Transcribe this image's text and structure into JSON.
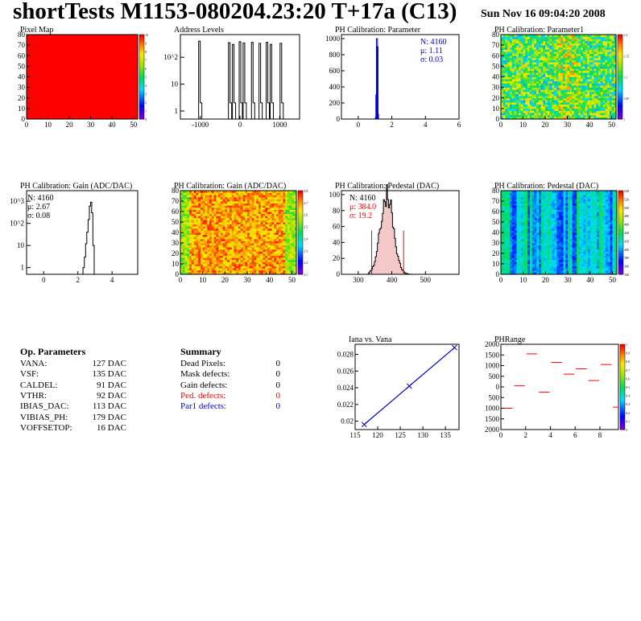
{
  "header": {
    "title": "shortTests M1153-080204.23:20 T+17a (C13)",
    "date": "Sun Nov 16 09:04:20 2008"
  },
  "colors": {
    "red": "#ff0000",
    "blue": "#0000cc",
    "black": "#000000"
  },
  "chart_data": [
    {
      "id": "pixel-map",
      "type": "heatmap",
      "title": "Pixel Map",
      "xlim": [
        0,
        52
      ],
      "ylim": [
        0,
        80
      ],
      "xticks": [
        "0",
        "10",
        "20",
        "30",
        "40",
        "50"
      ],
      "yticks": [
        "0",
        "10",
        "20",
        "30",
        "40",
        "50",
        "60",
        "70",
        "80"
      ],
      "zticks": [
        "0",
        "1",
        "2",
        "3",
        "4",
        "5",
        "6",
        "7",
        "8",
        "9",
        "10"
      ],
      "zrange": [
        0,
        10
      ],
      "fill_value": 10
    },
    {
      "id": "address-levels",
      "type": "bar",
      "title": "Address Levels",
      "xlim": [
        -1500,
        1500
      ],
      "log_y": true,
      "xticks": [
        "-1000",
        "0",
        "1000"
      ],
      "yticks": [
        "1",
        "10",
        "10^2"
      ],
      "peaks": [
        {
          "x": -1000,
          "y": 400
        },
        {
          "x": -250,
          "y": 350
        },
        {
          "x": -150,
          "y": 300
        },
        {
          "x": 20,
          "y": 380
        },
        {
          "x": 120,
          "y": 340
        },
        {
          "x": 330,
          "y": 360
        },
        {
          "x": 520,
          "y": 330
        },
        {
          "x": 700,
          "y": 360
        },
        {
          "x": 800,
          "y": 300
        },
        {
          "x": 1050,
          "y": 330
        }
      ]
    },
    {
      "id": "ph-param",
      "type": "bar",
      "title": "PH Calibration: Parameter",
      "xlim": [
        -1,
        6
      ],
      "ylim": [
        0,
        1050
      ],
      "xticks": [
        "0",
        "2",
        "4",
        "6"
      ],
      "yticks": [
        "0",
        "200",
        "400",
        "600",
        "800",
        "1000"
      ],
      "stats": [
        "N: 4160",
        "μ: 1.11",
        "σ: 0.03"
      ],
      "bins": [
        {
          "x": 1.05,
          "y": 20
        },
        {
          "x": 1.08,
          "y": 300
        },
        {
          "x": 1.11,
          "y": 1000
        },
        {
          "x": 1.14,
          "y": 900
        },
        {
          "x": 1.17,
          "y": 60
        }
      ]
    },
    {
      "id": "ph-param1",
      "type": "heatmap",
      "title": "PH Calibration: Parameter1",
      "xlim": [
        0,
        52
      ],
      "ylim": [
        0,
        80
      ],
      "xticks": [
        "0",
        "10",
        "20",
        "30",
        "40",
        "50"
      ],
      "yticks": [
        "0",
        "10",
        "20",
        "30",
        "40",
        "50",
        "60",
        "70",
        "80"
      ],
      "zticks": [
        "1",
        "1.05",
        "1.1",
        "1.15",
        "1.2"
      ],
      "zrange": [
        1.0,
        1.2
      ]
    },
    {
      "id": "ph-gain-dist",
      "type": "bar",
      "title": "PH Calibration: Gain (ADC/DAC)",
      "xlim": [
        -1,
        5.5
      ],
      "log_y": true,
      "xticks": [
        "0",
        "2",
        "4"
      ],
      "yticks": [
        "1",
        "10",
        "10^2",
        "10^3"
      ],
      "stats": [
        "N: 4160",
        "μ: 2.67",
        "σ: 0.08"
      ],
      "bins": [
        {
          "x": 2.3,
          "y": 1
        },
        {
          "x": 2.38,
          "y": 3
        },
        {
          "x": 2.45,
          "y": 12
        },
        {
          "x": 2.52,
          "y": 40
        },
        {
          "x": 2.6,
          "y": 150
        },
        {
          "x": 2.67,
          "y": 600
        },
        {
          "x": 2.74,
          "y": 900
        },
        {
          "x": 2.8,
          "y": 300
        },
        {
          "x": 2.88,
          "y": 10
        }
      ]
    },
    {
      "id": "ph-gain-map",
      "type": "heatmap",
      "title": "PH Calibration: Gain (ADC/DAC)",
      "xlim": [
        0,
        52
      ],
      "ylim": [
        0,
        80
      ],
      "xticks": [
        "0",
        "10",
        "20",
        "30",
        "40",
        "50"
      ],
      "yticks": [
        "0",
        "10",
        "20",
        "30",
        "40",
        "50",
        "60",
        "70",
        "80"
      ],
      "zticks": [
        "2.1",
        "2.2",
        "2.3",
        "2.4",
        "2.5",
        "2.6",
        "2.7",
        "2.8"
      ],
      "zrange": [
        2.1,
        2.8
      ]
    },
    {
      "id": "ph-pedestal-dist",
      "type": "bar",
      "title": "PH Calibration: Pedestal (DAC)",
      "xlim": [
        250,
        600
      ],
      "ylim": [
        0,
        105
      ],
      "xticks": [
        "300",
        "400",
        "500"
      ],
      "yticks": [
        "0",
        "20",
        "40",
        "60",
        "80",
        "100"
      ],
      "stats": [
        "N: 4160",
        "μ: 384.0",
        "σ: 19.2"
      ],
      "cut_lines": [
        340,
        435
      ],
      "cut_height": 55
    },
    {
      "id": "ph-pedestal-map",
      "type": "heatmap",
      "title": "PH Calibration: Pedestal (DAC)",
      "xlim": [
        0,
        52
      ],
      "ylim": [
        0,
        80
      ],
      "xticks": [
        "0",
        "10",
        "20",
        "30",
        "40",
        "50"
      ],
      "yticks": [
        "0",
        "10",
        "20",
        "30",
        "40",
        "50",
        "60",
        "70",
        "80"
      ],
      "zticks": [
        "340",
        "360",
        "380",
        "400",
        "420",
        "440",
        "460",
        "480",
        "500",
        "520",
        "540"
      ],
      "zrange": [
        340,
        540
      ]
    },
    {
      "id": "iana-vs-vana",
      "type": "line",
      "title": "Iana vs. Vana",
      "xlim": [
        115,
        138
      ],
      "ylim": [
        0.019,
        0.0292
      ],
      "xticks": [
        "115",
        "120",
        "125",
        "130",
        "135"
      ],
      "yticks": [
        "0.02",
        "0.022",
        "0.024",
        "0.026",
        "0.028"
      ],
      "x": [
        117,
        127,
        137
      ],
      "y": [
        0.0196,
        0.0242,
        0.0288
      ]
    },
    {
      "id": "ph-range",
      "type": "line",
      "title": "PHRange",
      "xlim": [
        0,
        9.5
      ],
      "ylim": [
        -2000,
        2000
      ],
      "xticks": [
        "0",
        "2",
        "4",
        "6",
        "8"
      ],
      "yticks": [
        "2000",
        "1500",
        "1000",
        "500",
        "0",
        "500",
        "1000",
        "1500",
        "2000"
      ],
      "zticks": [
        "0",
        "0.1",
        "0.2",
        "0.3",
        "0.4",
        "0.5",
        "0.6",
        "0.7",
        "0.8",
        "0.9",
        "1"
      ],
      "segments": [
        {
          "x0": 0,
          "x1": 1,
          "y": -1000
        },
        {
          "x0": 1,
          "x1": 2,
          "y": 50
        },
        {
          "x0": 2,
          "x1": 3,
          "y": 1550
        },
        {
          "x0": 3,
          "x1": 4,
          "y": -250
        },
        {
          "x0": 4,
          "x1": 5,
          "y": 1150
        },
        {
          "x0": 5,
          "x1": 6,
          "y": 600
        },
        {
          "x0": 6,
          "x1": 7,
          "y": 850
        },
        {
          "x0": 7,
          "x1": 8,
          "y": 300
        },
        {
          "x0": 8,
          "x1": 9,
          "y": 1050
        },
        {
          "x0": 9,
          "x1": 9.5,
          "y": -950
        }
      ]
    }
  ],
  "op_params": {
    "heading": "Op. Parameters",
    "rows": [
      {
        "name": "VANA:",
        "value": "127 DAC"
      },
      {
        "name": "VSF:",
        "value": "135 DAC"
      },
      {
        "name": "CALDEL:",
        "value": "91 DAC"
      },
      {
        "name": "VTHR:",
        "value": "92 DAC"
      },
      {
        "name": "IBIAS_DAC:",
        "value": "113 DAC"
      },
      {
        "name": "VIBIAS_PH:",
        "value": "179 DAC"
      },
      {
        "name": "VOFFSETOP:",
        "value": "16 DAC"
      }
    ]
  },
  "summary": {
    "heading": "Summary",
    "rows": [
      {
        "name": "Dead Pixels:",
        "value": "0",
        "color": "#000000"
      },
      {
        "name": "Mask defects:",
        "value": "0",
        "color": "#000000"
      },
      {
        "name": "Gain defects:",
        "value": "0",
        "color": "#000000"
      },
      {
        "name": "Ped. defects:",
        "value": "0",
        "color": "#ff0000"
      },
      {
        "name": "Par1 defects:",
        "value": "0",
        "color": "#0000cc"
      }
    ]
  }
}
